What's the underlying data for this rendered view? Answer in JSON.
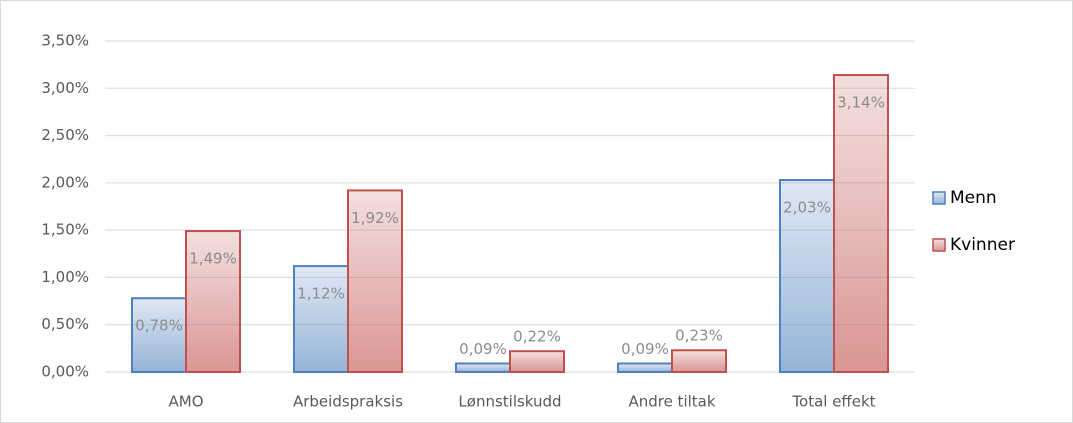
{
  "chart_data": {
    "type": "bar",
    "categories": [
      "AMO",
      "Arbeidspraksis",
      "Lønnstilskudd",
      "Andre tiltak",
      "Total effekt"
    ],
    "series": [
      {
        "name": "Menn",
        "color": "#4f81bd",
        "values": [
          0.78,
          1.12,
          0.09,
          0.09,
          2.03
        ],
        "value_labels": [
          "0,78%",
          "1,12%",
          "0,09%",
          "0,09%",
          "2,03%"
        ]
      },
      {
        "name": "Kvinner",
        "color": "#c0504d",
        "values": [
          1.49,
          1.92,
          0.22,
          0.23,
          3.14
        ],
        "value_labels": [
          "1,49%",
          "1,92%",
          "0,22%",
          "0,23%",
          "3,14%"
        ]
      }
    ],
    "ylim": [
      0,
      3.5
    ],
    "yticks": [
      {
        "value": 0,
        "label": "0,00%"
      },
      {
        "value": 0.5,
        "label": "0,50%"
      },
      {
        "value": 1,
        "label": "1,00%"
      },
      {
        "value": 1.5,
        "label": "1,50%"
      },
      {
        "value": 2,
        "label": "2,00%"
      },
      {
        "value": 2.5,
        "label": "2,50%"
      },
      {
        "value": 3,
        "label": "3,00%"
      },
      {
        "value": 3.5,
        "label": "3,50%"
      }
    ],
    "grid": true,
    "legend": "right"
  }
}
